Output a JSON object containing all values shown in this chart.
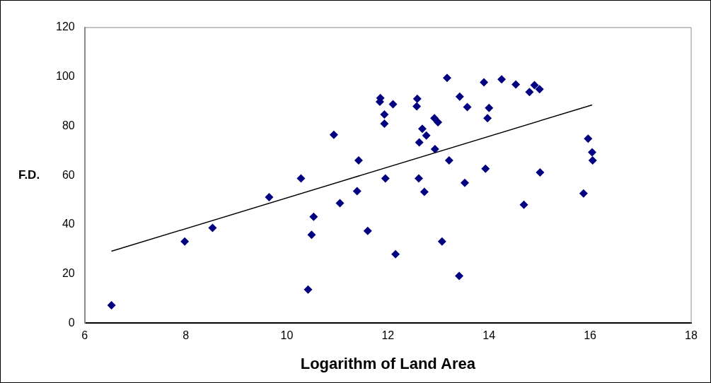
{
  "chart_data": {
    "type": "scatter",
    "xlabel": "Logarithm of Land Area",
    "ylabel": "F.D.",
    "marker": "diamond",
    "grid": false,
    "legend": false,
    "xlim": [
      6,
      18
    ],
    "xticks": [
      6,
      8,
      10,
      12,
      14,
      16,
      18
    ],
    "ylim": [
      0,
      120
    ],
    "yticks": [
      0,
      20,
      40,
      60,
      80,
      100,
      120
    ],
    "series": [
      {
        "color": "#000080",
        "x": [
          6.53,
          7.98,
          8.53,
          9.65,
          10.28,
          10.42,
          10.49,
          10.53,
          10.93,
          11.05,
          11.39,
          11.42,
          11.6,
          11.85,
          11.84,
          11.93,
          11.93,
          11.95,
          12.1,
          12.15,
          12.58,
          12.57,
          12.61,
          12.72,
          12.68,
          12.62,
          12.76,
          12.92,
          12.99,
          12.93,
          13.07,
          13.17,
          13.21,
          13.42,
          13.41,
          13.52,
          13.57,
          13.9,
          13.93,
          13.97,
          14.0,
          14.25,
          14.53,
          14.69,
          14.8,
          14.9,
          15.0,
          15.01,
          15.87,
          15.96,
          16.04,
          16.05
        ],
        "values": [
          7.3,
          33.2,
          38.7,
          51.2,
          58.8,
          13.7,
          35.9,
          43.2,
          76.5,
          48.7,
          53.6,
          66.1,
          37.5,
          91.4,
          89.9,
          84.7,
          81.0,
          58.8,
          88.9,
          28.0,
          91.1,
          88.0,
          58.8,
          53.3,
          78.9,
          73.4,
          76.2,
          83.2,
          81.6,
          70.7,
          33.2,
          99.6,
          66.1,
          92.0,
          19.2,
          57.0,
          87.7,
          97.8,
          62.7,
          83.2,
          87.4,
          99.0,
          96.9,
          48.1,
          93.8,
          96.6,
          95.0,
          61.2,
          52.7,
          74.9,
          69.4,
          66.1
        ]
      },
      {
        "type": "line",
        "color": "#000000",
        "marker": "none",
        "x": [
          6.53,
          16.04
        ],
        "values": [
          29.2,
          88.6
        ]
      }
    ]
  }
}
